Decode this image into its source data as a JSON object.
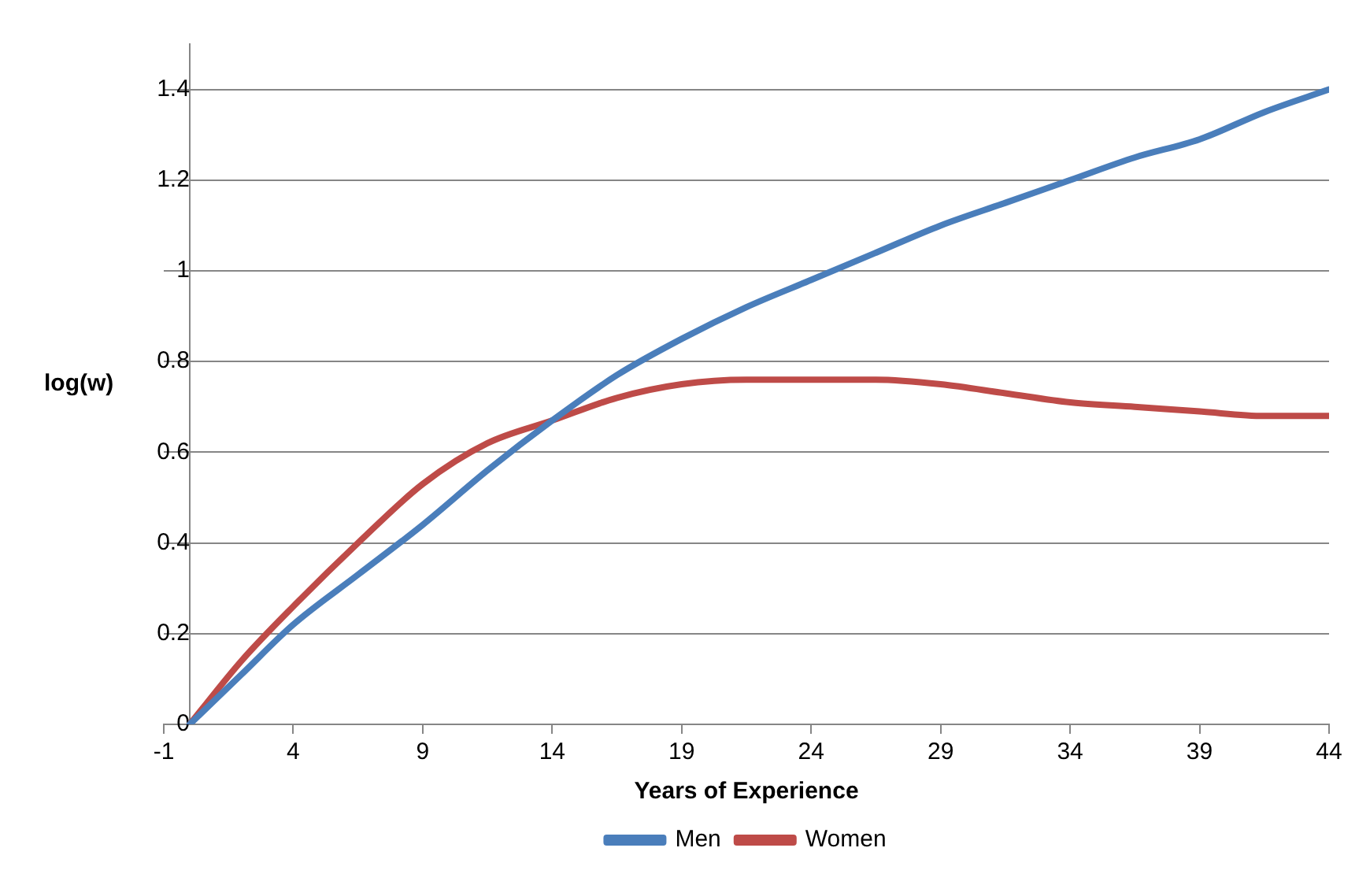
{
  "chart_data": {
    "type": "line",
    "xlabel": "Years of Experience",
    "ylabel": "log(w)",
    "x": [
      0,
      2,
      4,
      6.5,
      9,
      11.5,
      14,
      16.5,
      19,
      21.5,
      24,
      26.5,
      29,
      31.5,
      34,
      36.5,
      39,
      41.5,
      44
    ],
    "series": [
      {
        "name": "Men",
        "color": "#4a7ebb",
        "values": [
          0,
          0.11,
          0.22,
          0.33,
          0.44,
          0.56,
          0.67,
          0.77,
          0.85,
          0.92,
          0.98,
          1.04,
          1.1,
          1.15,
          1.2,
          1.25,
          1.29,
          1.35,
          1.4
        ]
      },
      {
        "name": "Women",
        "color": "#be4b48",
        "values": [
          0,
          0.14,
          0.26,
          0.4,
          0.53,
          0.62,
          0.67,
          0.72,
          0.75,
          0.76,
          0.76,
          0.76,
          0.75,
          0.73,
          0.71,
          0.7,
          0.69,
          0.68,
          0.68
        ]
      }
    ],
    "xlim": [
      -1,
      44
    ],
    "xticks": [
      -1,
      4,
      9,
      14,
      19,
      24,
      29,
      34,
      39,
      44
    ],
    "ylim": [
      0,
      1.5
    ],
    "yticks": [
      0,
      0.2,
      0.4,
      0.6,
      0.8,
      1,
      1.2,
      1.4
    ],
    "grid": "y",
    "legend": "bottom",
    "marker": "none",
    "line_style": "solid"
  }
}
